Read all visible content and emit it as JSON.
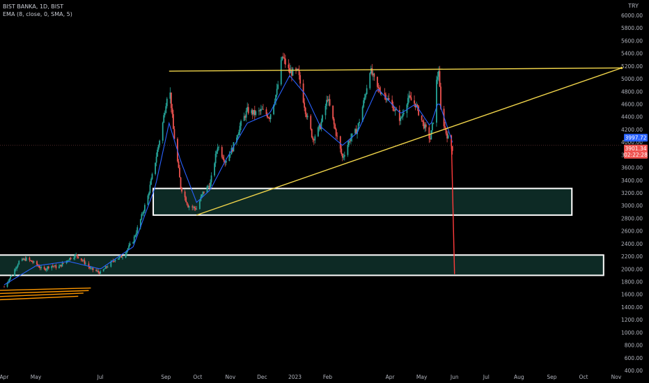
{
  "header": {
    "symbol_line": "BIST BANKA, 1D, BIST",
    "indicator_line": "EMA (8, close, 0, SMA, 5)",
    "currency": "TRY"
  },
  "colors": {
    "background": "#000000",
    "up_candle": "#26a69a",
    "down_candle": "#ef5350",
    "ema_line": "#2962ff",
    "trendline": "#f0d44a",
    "projection": "#ff3b3b",
    "zone_fill": "#0d2a25",
    "zone_border": "#ffffff",
    "support_lines": "#ff9800",
    "grid_text": "#b2b5be"
  },
  "price_labels": {
    "ema_value": "3997.72",
    "last_price": "3901.34",
    "countdown": "02:22:28"
  },
  "chart_data": {
    "type": "candlestick",
    "title": "BIST BANKA, 1D, BIST",
    "indicator": "EMA (8, close, 0, SMA, 5)",
    "currency": "TRY",
    "ylim": [
      400,
      6200
    ],
    "y_ticks": [
      400,
      600,
      800,
      1000,
      1200,
      1400,
      1600,
      1800,
      2000,
      2200,
      2400,
      2600,
      2800,
      3000,
      3200,
      3400,
      3600,
      3800,
      4000,
      4200,
      4400,
      4600,
      4800,
      5000,
      5200,
      5400,
      5600,
      5800,
      6000
    ],
    "x_ticks": [
      {
        "label": "Apr",
        "date": "2022-04-01"
      },
      {
        "label": "May",
        "date": "2022-05-01"
      },
      {
        "label": "Jul",
        "date": "2022-07-01"
      },
      {
        "label": "Sep",
        "date": "2022-09-01"
      },
      {
        "label": "Oct",
        "date": "2022-10-01"
      },
      {
        "label": "Nov",
        "date": "2022-11-01"
      },
      {
        "label": "Dec",
        "date": "2022-12-01"
      },
      {
        "label": "2023",
        "date": "2023-01-01"
      },
      {
        "label": "Feb",
        "date": "2023-02-01"
      },
      {
        "label": "Apr",
        "date": "2023-04-01"
      },
      {
        "label": "May",
        "date": "2023-05-01"
      },
      {
        "label": "Jun",
        "date": "2023-06-01"
      },
      {
        "label": "Jul",
        "date": "2023-07-01"
      },
      {
        "label": "Aug",
        "date": "2023-08-01"
      },
      {
        "label": "Sep",
        "date": "2023-09-01"
      },
      {
        "label": "Oct",
        "date": "2023-10-01"
      },
      {
        "label": "Nov",
        "date": "2023-11-01"
      }
    ],
    "price_path": [
      [
        "2022-04-01",
        1720
      ],
      [
        "2022-04-08",
        1900
      ],
      [
        "2022-04-15",
        2120
      ],
      [
        "2022-04-22",
        2160
      ],
      [
        "2022-05-01",
        2080
      ],
      [
        "2022-05-08",
        1980
      ],
      [
        "2022-05-15",
        2060
      ],
      [
        "2022-05-22",
        2020
      ],
      [
        "2022-06-01",
        2160
      ],
      [
        "2022-06-08",
        2220
      ],
      [
        "2022-06-15",
        2120
      ],
      [
        "2022-06-22",
        2000
      ],
      [
        "2022-07-01",
        1940
      ],
      [
        "2022-07-08",
        2050
      ],
      [
        "2022-07-15",
        2160
      ],
      [
        "2022-07-22",
        2200
      ],
      [
        "2022-08-01",
        2450
      ],
      [
        "2022-08-08",
        2780
      ],
      [
        "2022-08-15",
        3150
      ],
      [
        "2022-08-22",
        3700
      ],
      [
        "2022-08-29",
        4300
      ],
      [
        "2022-09-04",
        4950
      ],
      [
        "2022-09-08",
        4200
      ],
      [
        "2022-09-15",
        3300
      ],
      [
        "2022-09-22",
        3000
      ],
      [
        "2022-09-30",
        2950
      ],
      [
        "2022-10-06",
        3200
      ],
      [
        "2022-10-13",
        3350
      ],
      [
        "2022-10-20",
        3950
      ],
      [
        "2022-10-27",
        3700
      ],
      [
        "2022-11-03",
        3900
      ],
      [
        "2022-11-10",
        4250
      ],
      [
        "2022-11-17",
        4500
      ],
      [
        "2022-11-24",
        4450
      ],
      [
        "2022-12-01",
        4500
      ],
      [
        "2022-12-08",
        4400
      ],
      [
        "2022-12-15",
        4800
      ],
      [
        "2022-12-20",
        5350
      ],
      [
        "2022-12-27",
        5100
      ],
      [
        "2023-01-04",
        5100
      ],
      [
        "2023-01-11",
        4500
      ],
      [
        "2023-01-18",
        4050
      ],
      [
        "2023-01-25",
        4250
      ],
      [
        "2023-02-01",
        4700
      ],
      [
        "2023-02-08",
        4200
      ],
      [
        "2023-02-15",
        3750
      ],
      [
        "2023-02-22",
        4050
      ],
      [
        "2023-03-01",
        4200
      ],
      [
        "2023-03-08",
        4700
      ],
      [
        "2023-03-13",
        5150
      ],
      [
        "2023-03-20",
        4850
      ],
      [
        "2023-03-27",
        4750
      ],
      [
        "2023-04-04",
        4550
      ],
      [
        "2023-04-11",
        4350
      ],
      [
        "2023-04-18",
        4700
      ],
      [
        "2023-04-25",
        4600
      ],
      [
        "2023-05-02",
        4300
      ],
      [
        "2023-05-09",
        4050
      ],
      [
        "2023-05-12",
        4350
      ],
      [
        "2023-05-15",
        4950
      ],
      [
        "2023-05-17",
        5150
      ],
      [
        "2023-05-19",
        4500
      ],
      [
        "2023-05-24",
        4150
      ],
      [
        "2023-05-30",
        3900
      ]
    ],
    "ema_path": [
      [
        "2022-04-01",
        1750
      ],
      [
        "2022-05-01",
        2050
      ],
      [
        "2022-06-01",
        2120
      ],
      [
        "2022-07-01",
        2000
      ],
      [
        "2022-08-01",
        2350
      ],
      [
        "2022-08-22",
        3300
      ],
      [
        "2022-09-04",
        4300
      ],
      [
        "2022-09-15",
        3700
      ],
      [
        "2022-09-30",
        3050
      ],
      [
        "2022-10-13",
        3250
      ],
      [
        "2022-10-27",
        3700
      ],
      [
        "2022-11-17",
        4300
      ],
      [
        "2022-12-08",
        4450
      ],
      [
        "2022-12-27",
        5050
      ],
      [
        "2023-01-11",
        4750
      ],
      [
        "2023-01-25",
        4250
      ],
      [
        "2023-02-15",
        3950
      ],
      [
        "2023-03-01",
        4150
      ],
      [
        "2023-03-20",
        4850
      ],
      [
        "2023-04-11",
        4450
      ],
      [
        "2023-04-25",
        4600
      ],
      [
        "2023-05-09",
        4250
      ],
      [
        "2023-05-17",
        4650
      ],
      [
        "2023-05-24",
        4300
      ],
      [
        "2023-05-30",
        3997.72
      ]
    ],
    "ema_value": 3997.72,
    "last_price": 3901.34,
    "countdown": "02:22:28",
    "drawings": {
      "resistance": {
        "x1": "2022-09-04",
        "y1": 5120,
        "x2": "2023-11-06",
        "y2": 5170
      },
      "rising_trendline": {
        "x1": "2022-09-30",
        "y1": 2850,
        "x2": "2023-11-06",
        "y2": 5170
      },
      "projection": {
        "x1": "2023-05-29",
        "y1": 4050,
        "x2": "2023-06-01",
        "y2": 1920
      },
      "zones": [
        {
          "x1": "2022-08-20",
          "x2": "2023-09-20",
          "y_low": 2850,
          "y_high": 3270
        },
        {
          "x1": "2022-03-20",
          "x2": "2023-10-20",
          "y_low": 1900,
          "y_high": 2220
        }
      ],
      "support_lines": [
        {
          "x1": "2022-03-20",
          "x2": "2022-06-22",
          "y1": 1660,
          "y2": 1700
        },
        {
          "x1": "2022-03-20",
          "x2": "2022-06-20",
          "y1": 1610,
          "y2": 1660
        },
        {
          "x1": "2022-03-20",
          "x2": "2022-06-15",
          "y1": 1560,
          "y2": 1620
        },
        {
          "x1": "2022-03-20",
          "x2": "2022-06-10",
          "y1": 1510,
          "y2": 1570
        }
      ]
    }
  }
}
